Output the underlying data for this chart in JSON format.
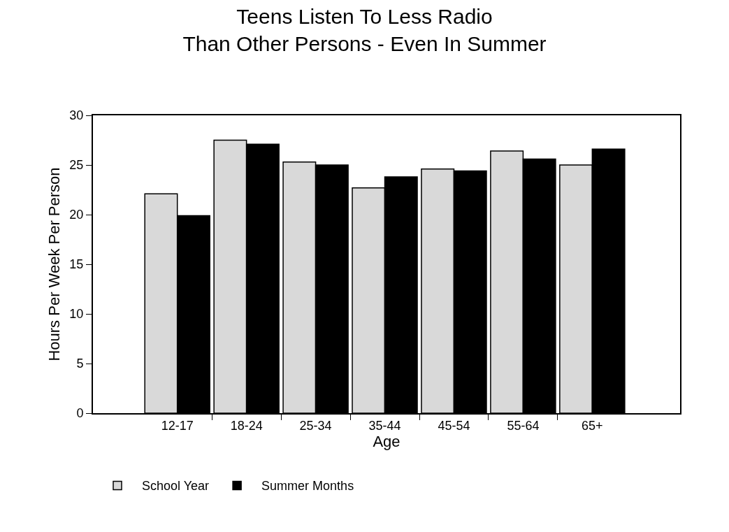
{
  "chart_data": {
    "type": "bar",
    "title": "Teens Listen To Less Radio\nThan Other Persons - Even In Summer",
    "xlabel": "Age",
    "ylabel": "Hours Per Week Per Person",
    "categories": [
      "12-17",
      "18-24",
      "25-34",
      "35-44",
      "45-54",
      "55-64",
      "65+"
    ],
    "series": [
      {
        "name": "School Year",
        "color": "#d9d9d9",
        "values": [
          22.1,
          27.5,
          25.3,
          22.7,
          24.6,
          26.4,
          25.0
        ]
      },
      {
        "name": "Summer Months",
        "color": "#000000",
        "values": [
          19.9,
          27.1,
          25.0,
          23.8,
          24.4,
          25.6,
          26.6
        ]
      }
    ],
    "ylim": [
      0,
      30
    ],
    "yticks": [
      0,
      5,
      10,
      15,
      20,
      25,
      30
    ],
    "legend": "bottom"
  }
}
